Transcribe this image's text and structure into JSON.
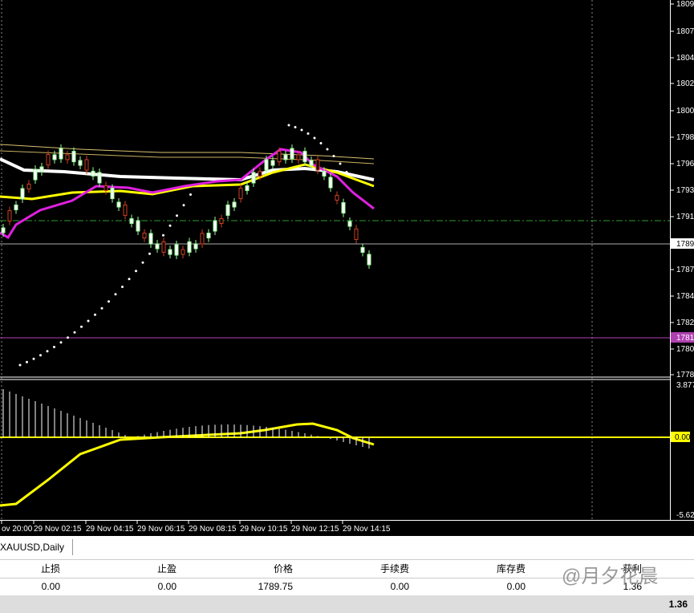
{
  "price_axis": {
    "labels": [
      "1809",
      "1807",
      "1804",
      "1802",
      "1800",
      "1798",
      "1796",
      "1793",
      "1791",
      "1787",
      "1784",
      "1782",
      "1780",
      "1778"
    ],
    "bid_tag": "1789",
    "line_tag": "1781"
  },
  "macd_axis": {
    "top": "3.877",
    "zero": "0.00",
    "bottom": "-5.62"
  },
  "time_axis": {
    "labels": [
      "ov 20:00",
      "29 Nov 02:15",
      "29 Nov 04:15",
      "29 Nov 06:15",
      "29 Nov 08:15",
      "29 Nov 10:15",
      "29 Nov 12:15",
      "29 Nov 14:15"
    ]
  },
  "tab": {
    "label": "XAUUSD,Daily"
  },
  "table": {
    "headers": [
      "止损",
      "止盈",
      "价格",
      "手续费",
      "库存费",
      "获利"
    ],
    "rows": [
      [
        "0.00",
        "0.00",
        "1789.75",
        "0.00",
        "0.00",
        "1.36"
      ]
    ],
    "total": "1.36"
  },
  "watermark": "@月夕花晨"
}
